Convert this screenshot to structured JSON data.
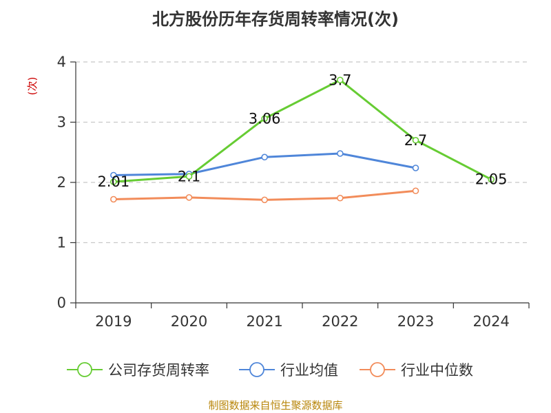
{
  "chart_data": {
    "type": "line",
    "title": "北方股份历年存货周转率情况(次)",
    "ylabel": "(次)",
    "xlabel": "",
    "categories": [
      "2019",
      "2020",
      "2021",
      "2022",
      "2023",
      "2024"
    ],
    "ylim": [
      0,
      4
    ],
    "yticks": [
      0,
      1,
      2,
      3,
      4
    ],
    "grid": true,
    "legend_position": "bottom",
    "series": [
      {
        "name": "公司存货周转率",
        "color": "#66cc33",
        "values": [
          2.01,
          2.1,
          3.06,
          3.7,
          2.7,
          2.05
        ],
        "labels": [
          "2.01",
          "2.1",
          "3.06",
          "3.7",
          "2.7",
          "2.05"
        ]
      },
      {
        "name": "行业均值",
        "color": "#4f86d9",
        "values": [
          2.12,
          2.14,
          2.42,
          2.48,
          2.24,
          null
        ]
      },
      {
        "name": "行业中位数",
        "color": "#f28c5a",
        "values": [
          1.72,
          1.75,
          1.71,
          1.74,
          1.86,
          null
        ]
      }
    ]
  },
  "source": "制图数据来自恒生聚源数据库"
}
